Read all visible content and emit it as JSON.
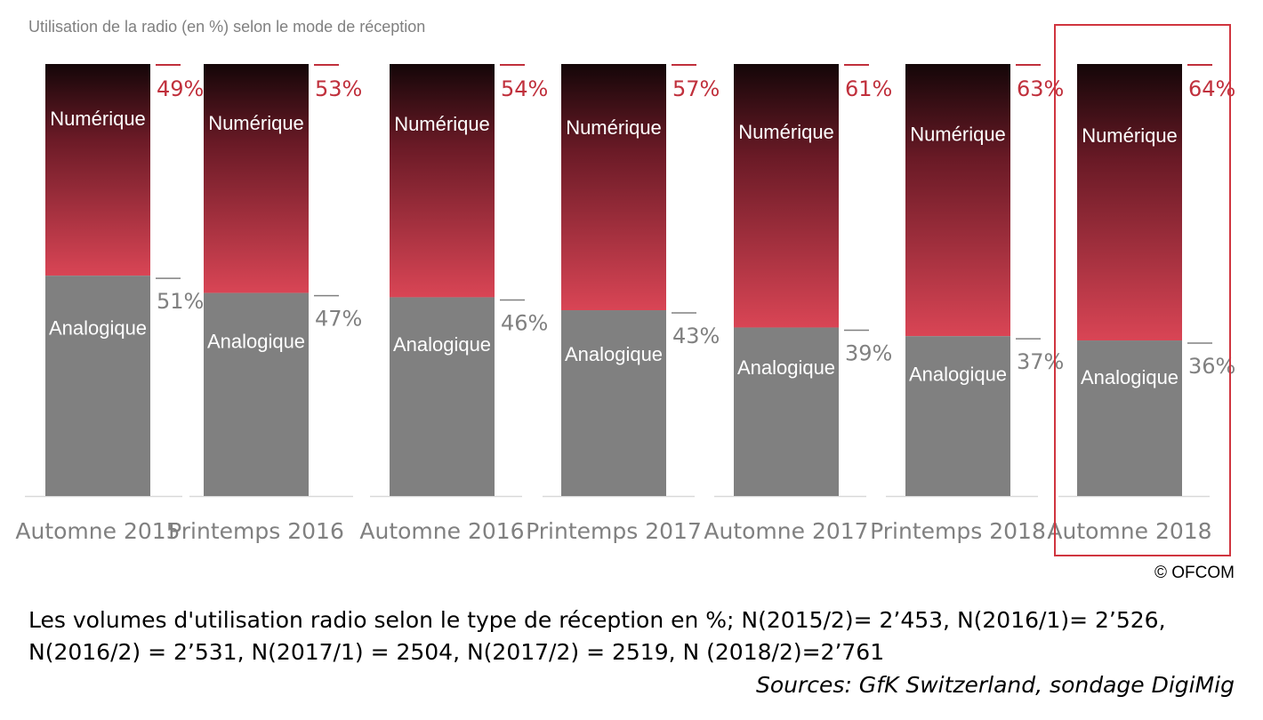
{
  "chart_data": {
    "type": "bar",
    "stacked": true,
    "normalized": true,
    "title": "Utilisation de la radio (en %) selon le mode de réception",
    "categories": [
      "Automne 2015",
      "Printemps 2016",
      "Automne 2016",
      "Printemps 2017",
      "Automne 2017",
      "Printemps 2018",
      "Automne 2018"
    ],
    "series": [
      {
        "name": "Analogique",
        "values": [
          51,
          47,
          46,
          43,
          39,
          37,
          36
        ],
        "color": "#808080",
        "label_color": "#808080"
      },
      {
        "name": "Numérique",
        "values": [
          49,
          53,
          54,
          57,
          61,
          63,
          64
        ],
        "color_top": "#140608",
        "color_bottom": "#d94555",
        "label_color": "#c0303c"
      }
    ],
    "value_suffix": "%",
    "ylim": [
      0,
      100
    ],
    "grid": false,
    "highlighted_category": "Automne 2018",
    "highlight_color": "#d0353f"
  },
  "footer": {
    "copyright": "© OFCOM",
    "caption": "Les volumes d'utilisation radio selon le type de réception en %; N(2015/2)= 2’453, N(2016/1)= 2’526, N(2016/2) = 2’531, N(2017/1) = 2504, N(2017/2) = 2519, N (2018/2)=2’761",
    "sources": "Sources: GfK Switzerland, sondage DigiMig"
  }
}
